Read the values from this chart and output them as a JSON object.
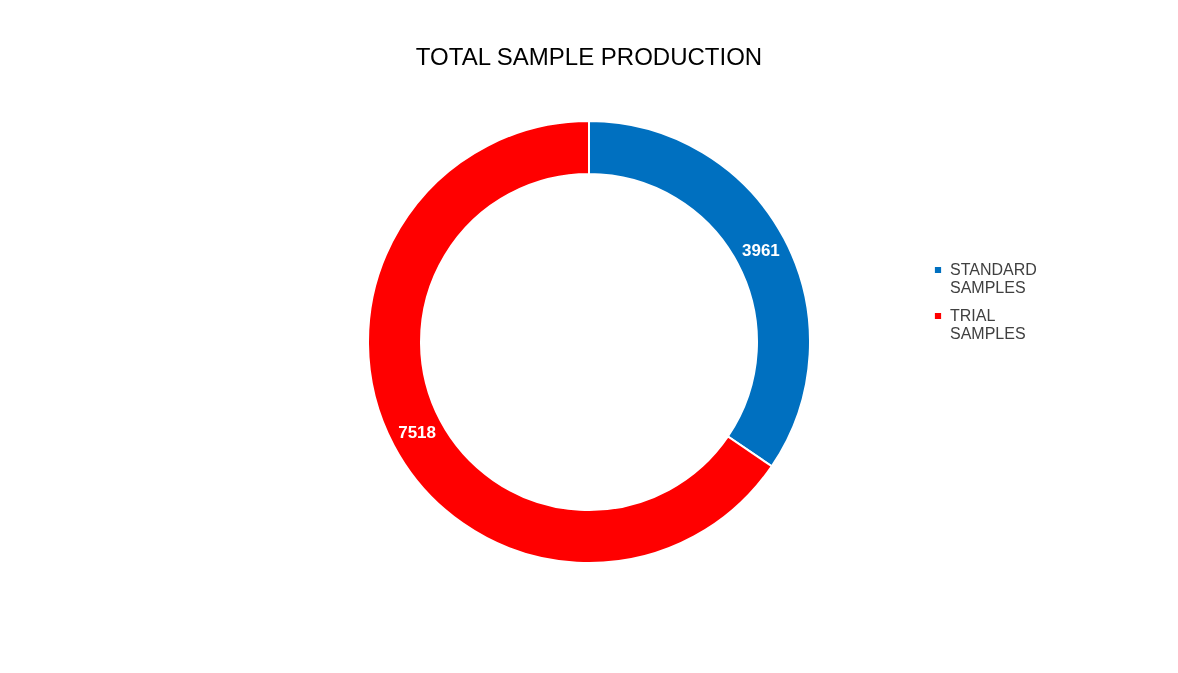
{
  "chart_data": {
    "type": "donut",
    "title": "TOTAL SAMPLE PRODUCTION",
    "categories": [
      "STANDARD SAMPLES",
      "TRIAL SAMPLES"
    ],
    "values": [
      3961,
      7518
    ],
    "colors": [
      "#0070c0",
      "#ff0000"
    ],
    "data_labels": true,
    "legend": "right"
  }
}
